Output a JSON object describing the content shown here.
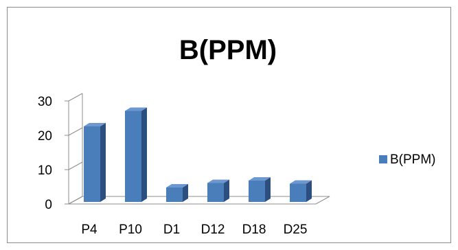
{
  "chart_data": {
    "type": "bar",
    "title": "B(PPM)",
    "categories": [
      "P4",
      "P10",
      "D1",
      "D12",
      "D18",
      "D25"
    ],
    "series": [
      {
        "name": "B(PPM)",
        "values": [
          22,
          26.5,
          4.2,
          5.5,
          6.2,
          5.3
        ]
      }
    ],
    "ylim": [
      0,
      30
    ],
    "yticks": [
      0,
      10,
      20,
      30
    ],
    "xlabel": "",
    "ylabel": "",
    "grid": false,
    "legend": "right",
    "style": "3d-column",
    "colors": {
      "bar_front": "#4a7ebb",
      "bar_side": "#2c4f80",
      "bar_top": "#6d97cf",
      "axis": "#8c8c8c"
    }
  }
}
